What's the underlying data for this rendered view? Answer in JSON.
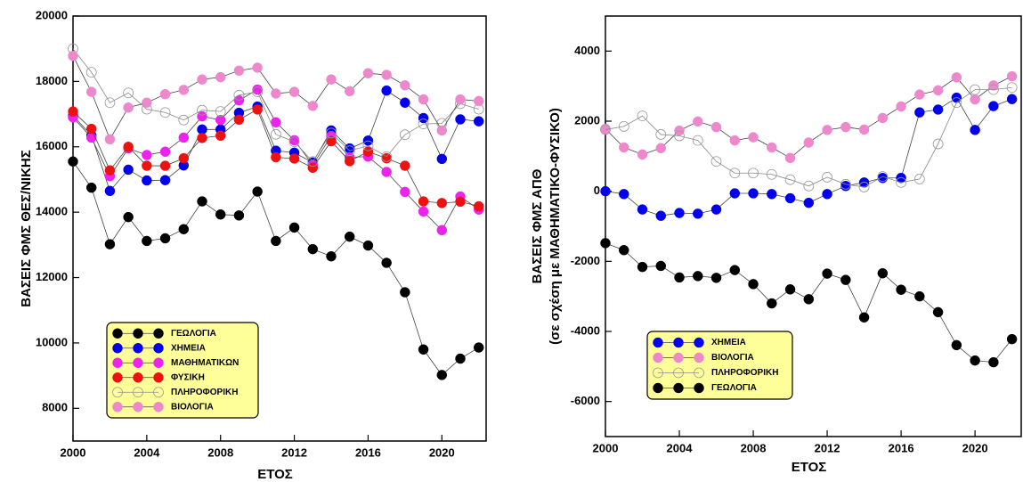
{
  "chart_data": [
    {
      "type": "line",
      "ylabel": [
        "ΒΑΣΕΙΣ ΦΜΣ ΘΕΣ/ΝΙΚΗΣ"
      ],
      "xlabel": "ΕΤΟΣ",
      "x": [
        2000,
        2001,
        2002,
        2003,
        2004,
        2005,
        2006,
        2007,
        2008,
        2009,
        2010,
        2011,
        2012,
        2013,
        2014,
        2015,
        2016,
        2017,
        2018,
        2019,
        2020,
        2021,
        2022
      ],
      "xlim": [
        2000,
        2022.4
      ],
      "xticks": [
        2000,
        2004,
        2008,
        2012,
        2016,
        2020
      ],
      "ylim": [
        7000,
        20000
      ],
      "yticks": [
        8000,
        10000,
        12000,
        14000,
        16000,
        18000,
        20000
      ],
      "legend": "lower left",
      "series": [
        {
          "name": "ΓΕΩΛΟΓΙΑ",
          "color": "#000000",
          "open": false,
          "values": [
            15550,
            14750,
            13020,
            13850,
            13120,
            13200,
            13480,
            14330,
            13930,
            13900,
            14630,
            13120,
            13530,
            12870,
            12650,
            13250,
            12980,
            12450,
            11550,
            9800,
            9020,
            9520,
            9860
          ]
        },
        {
          "name": "ΧΗΜΕΙΑ",
          "color": "#0000ee",
          "open": false,
          "values": [
            16950,
            16350,
            14650,
            15300,
            14970,
            14980,
            15430,
            16530,
            16530,
            17040,
            17230,
            15880,
            15820,
            15520,
            16500,
            15950,
            16190,
            17720,
            17350,
            16880,
            15630,
            16840,
            16780
          ]
        },
        {
          "name": "ΜΑΘΗΜΑΤΙΚΩΝ",
          "color": "#ee22ee",
          "open": false,
          "values": [
            16900,
            16280,
            15100,
            15950,
            15750,
            15850,
            16280,
            16930,
            16820,
            17420,
            17750,
            16750,
            16200,
            15450,
            16330,
            15680,
            15700,
            15230,
            14620,
            14020,
            13450,
            14480,
            14080
          ]
        },
        {
          "name": "ΦΥΣΙΚΗ",
          "color": "#ee1111",
          "open": false,
          "values": [
            17080,
            16550,
            15280,
            16000,
            15420,
            15420,
            15650,
            16270,
            16340,
            16830,
            17140,
            15680,
            15640,
            15360,
            16170,
            15560,
            15850,
            15650,
            15420,
            14330,
            14280,
            14320,
            14180
          ]
        },
        {
          "name": "ΠΛΗΡΟΦΟΡΙΚΗ",
          "color": "#999999",
          "open": true,
          "values": [
            19000,
            18280,
            17350,
            17650,
            17150,
            17050,
            16820,
            17120,
            17080,
            17580,
            17680,
            16380,
            16150,
            15550,
            16420,
            15880,
            16030,
            15700,
            16370,
            16700,
            16720,
            17320,
            17150
          ]
        },
        {
          "name": "ΒΙΟΛΟΓΙΑ",
          "color": "#ee88cc",
          "open": false,
          "values": [
            18780,
            17680,
            16230,
            17200,
            17350,
            17610,
            17740,
            18060,
            18130,
            18330,
            18420,
            17630,
            17680,
            17250,
            18060,
            17700,
            18250,
            18200,
            17880,
            17450,
            16500,
            17450,
            17400
          ]
        }
      ]
    },
    {
      "type": "line",
      "ylabel": [
        "ΒΑΣΕΙΣ ΦΜΣ ΑΠΘ",
        "(σε σχέση με ΜΑΘΗΜΑΤΙΚΟ-ΦΥΣΙΚΟ)"
      ],
      "xlabel": "ΕΤΟΣ",
      "x": [
        2000,
        2001,
        2002,
        2003,
        2004,
        2005,
        2006,
        2007,
        2008,
        2009,
        2010,
        2011,
        2012,
        2013,
        2014,
        2015,
        2016,
        2017,
        2018,
        2019,
        2020,
        2021,
        2022
      ],
      "xlim": [
        2000,
        2022.5
      ],
      "xticks": [
        2000,
        2004,
        2008,
        2012,
        2016,
        2020
      ],
      "ylim": [
        -7000,
        5000
      ],
      "yticks": [
        -6000,
        -4000,
        -2000,
        0,
        2000,
        4000
      ],
      "legend": "lower left",
      "series": [
        {
          "name": "ΧΗΜΕΙΑ",
          "color": "#0000ee",
          "open": false,
          "values": [
            0,
            -80,
            -520,
            -700,
            -620,
            -640,
            -520,
            -60,
            -60,
            -80,
            -200,
            -330,
            -80,
            150,
            250,
            380,
            380,
            2250,
            2330,
            2670,
            1750,
            2430,
            2630
          ]
        },
        {
          "name": "ΒΙΟΛΟΓΙΑ",
          "color": "#ee88cc",
          "open": false,
          "values": [
            1780,
            1250,
            1050,
            1230,
            1730,
            1990,
            1830,
            1450,
            1540,
            1250,
            950,
            1390,
            1750,
            1830,
            1760,
            2090,
            2420,
            2760,
            2880,
            3250,
            2620,
            3020,
            3280
          ]
        },
        {
          "name": "ΠΛΗΡΟΦΟΡΙΚΗ",
          "color": "#999999",
          "open": true,
          "values": [
            1760,
            1850,
            2150,
            1620,
            1580,
            1450,
            850,
            520,
            520,
            480,
            330,
            150,
            400,
            200,
            120,
            420,
            250,
            350,
            1350,
            2530,
            2900,
            2900,
            2960
          ]
        },
        {
          "name": "ΓΕΩΛΟΓΙΑ",
          "color": "#000000",
          "open": false,
          "values": [
            -1480,
            -1680,
            -2160,
            -2130,
            -2460,
            -2420,
            -2470,
            -2250,
            -2650,
            -3200,
            -2800,
            -3080,
            -2350,
            -2530,
            -3600,
            -2340,
            -2810,
            -3000,
            -3450,
            -4390,
            -4830,
            -4880,
            -4220
          ]
        }
      ]
    }
  ]
}
